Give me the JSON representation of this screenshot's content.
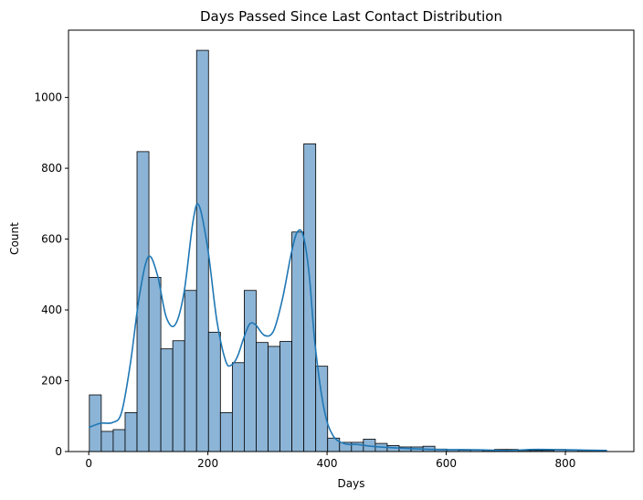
{
  "chart_data": {
    "type": "bar",
    "title": "Days Passed Since Last Contact Distribution",
    "xlabel": "Days",
    "ylabel": "Count",
    "xlim": [
      -34,
      915
    ],
    "ylim": [
      0,
      1190
    ],
    "xticks": [
      0,
      200,
      400,
      600,
      800
    ],
    "yticks": [
      0,
      200,
      400,
      600,
      800,
      1000
    ],
    "bin_width": 20,
    "bin_start": 1,
    "values": [
      160,
      57,
      62,
      110,
      847,
      492,
      290,
      313,
      455,
      1133,
      337,
      110,
      251,
      455,
      308,
      297,
      311,
      620,
      869,
      241,
      38,
      26,
      26,
      35,
      23,
      17,
      13,
      13,
      15,
      7,
      5,
      4,
      5,
      3,
      6,
      6,
      3,
      3,
      3,
      6,
      4,
      3,
      3
    ],
    "kde": {
      "x": [
        0,
        20,
        40,
        55,
        70,
        85,
        100,
        115,
        130,
        145,
        160,
        175,
        185,
        200,
        215,
        230,
        240,
        250,
        260,
        270,
        280,
        295,
        310,
        325,
        340,
        350,
        360,
        370,
        380,
        395,
        410,
        430,
        450,
        480,
        520,
        580,
        650,
        700,
        750,
        800,
        870
      ],
      "y": [
        68,
        80,
        82,
        110,
        250,
        440,
        550,
        500,
        380,
        358,
        450,
        650,
        695,
        570,
        370,
        255,
        245,
        270,
        320,
        360,
        358,
        328,
        340,
        430,
        560,
        620,
        610,
        500,
        300,
        120,
        45,
        22,
        20,
        14,
        10,
        6,
        5,
        3,
        6,
        5,
        3
      ]
    },
    "bar_color": "#8cb4d6",
    "kde_color": "#1f77b4",
    "grid": false,
    "legend": "none"
  }
}
